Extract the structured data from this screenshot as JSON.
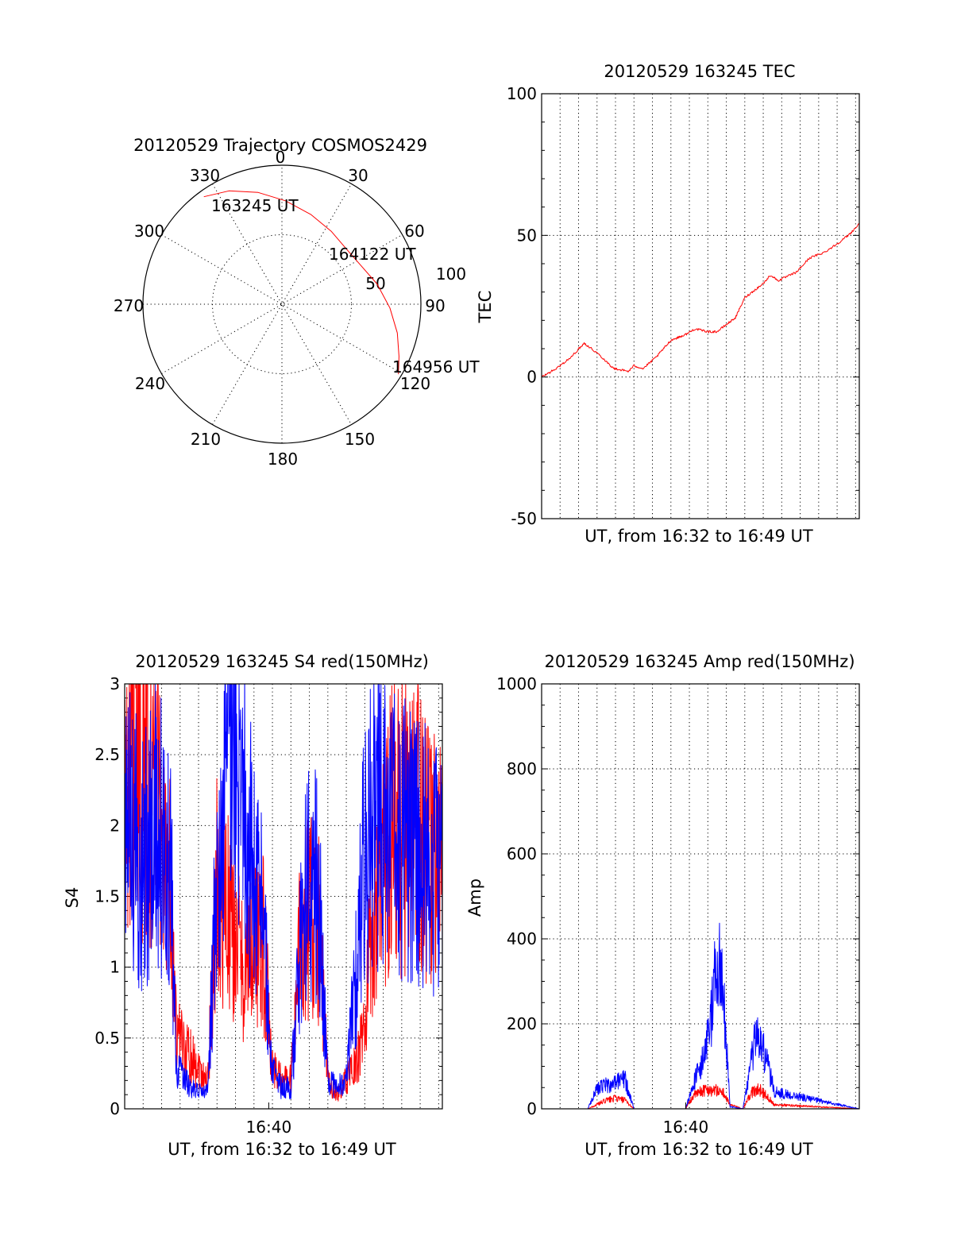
{
  "colors": {
    "red": "#ff0000",
    "blue": "#0000ff",
    "axis": "#000000",
    "background": "#ffffff"
  },
  "chart_data": [
    {
      "type": "polar",
      "title": "20120529 Trajectory COSMOS2429",
      "angle_labels": [
        "0",
        "30",
        "60",
        "90",
        "120",
        "150",
        "180",
        "210",
        "240",
        "270",
        "300",
        "330"
      ],
      "radial_labels": [
        "50",
        "100"
      ],
      "trajectory": {
        "color": "red",
        "points": [
          {
            "azimuth": 324,
            "elevation": 4
          },
          {
            "azimuth": 335,
            "elevation": 9
          },
          {
            "azimuth": 348,
            "elevation": 16
          },
          {
            "azimuth": 2,
            "elevation": 23
          },
          {
            "azimuth": 18,
            "elevation": 29
          },
          {
            "azimuth": 34,
            "elevation": 33
          },
          {
            "azimuth": 50,
            "elevation": 35
          },
          {
            "azimuth": 64,
            "elevation": 33
          },
          {
            "azimuth": 78,
            "elevation": 27
          },
          {
            "azimuth": 92,
            "elevation": 20
          },
          {
            "azimuth": 104,
            "elevation": 13
          },
          {
            "azimuth": 114,
            "elevation": 7
          },
          {
            "azimuth": 121,
            "elevation": 2
          }
        ]
      },
      "annotations": [
        "163245 UT",
        "164122 UT",
        "164956 UT"
      ]
    },
    {
      "type": "line",
      "title": "20120529 163245 TEC",
      "xlabel": "UT, from 16:32 to 16:49 UT",
      "ylabel": "TEC",
      "xlim": [
        0,
        17.2
      ],
      "ylim": [
        -50,
        100
      ],
      "yticks": [
        "-50",
        "0",
        "50",
        "100"
      ],
      "grid": true,
      "series": [
        {
          "color": "red",
          "x": [
            0.0,
            0.8,
            1.6,
            2.3,
            3.1,
            3.9,
            4.7,
            5.0,
            5.5,
            6.2,
            7.0,
            7.8,
            8.3,
            9.0,
            9.5,
            10.5,
            11.0,
            12.0,
            12.4,
            12.8,
            13.8,
            14.5,
            15.3,
            16.0,
            16.6,
            17.2
          ],
          "y": [
            0,
            3,
            7,
            12,
            8,
            3,
            2,
            4,
            3,
            7,
            13,
            15,
            17,
            16,
            16,
            21,
            28,
            33,
            36,
            34,
            37,
            42,
            44,
            47,
            50,
            54
          ]
        }
      ]
    },
    {
      "type": "line",
      "title": "20120529 163245 S4 red(150MHz)",
      "xlabel": "UT, from 16:32 to 16:49 UT",
      "ylabel": "S4",
      "xlim": [
        0,
        17.2
      ],
      "ylim": [
        0,
        3
      ],
      "xticks": [
        {
          "value": 7.8,
          "label": "16:40"
        }
      ],
      "yticks": [
        "0",
        "0.5",
        "1",
        "1.5",
        "2",
        "2.5",
        "3"
      ],
      "grid": true,
      "series": [
        {
          "color": "red",
          "x": [
            0.0,
            0.5,
            1.0,
            1.5,
            2.0,
            2.5,
            2.8,
            3.5,
            4.0,
            4.5,
            5.0,
            5.5,
            6.0,
            6.5,
            7.0,
            7.5,
            8.0,
            8.5,
            9.0,
            9.5,
            10.0,
            10.5,
            11.0,
            11.5,
            12.0,
            12.5,
            13.0,
            13.5,
            14.0,
            14.5,
            15.0,
            15.5,
            16.0,
            16.5,
            17.2
          ],
          "y": [
            2.2,
            2.3,
            2.5,
            2.3,
            2.0,
            1.6,
            0.5,
            0.4,
            0.3,
            0.2,
            1.6,
            1.4,
            1.2,
            1.0,
            1.1,
            1.2,
            0.3,
            0.2,
            0.2,
            1.2,
            1.4,
            1.3,
            0.2,
            0.1,
            0.2,
            0.3,
            0.6,
            1.4,
            1.8,
            2.0,
            2.0,
            1.9,
            2.0,
            1.8,
            1.7
          ]
        },
        {
          "color": "blue",
          "x": [
            0.0,
            0.5,
            1.0,
            1.5,
            2.0,
            2.5,
            2.8,
            3.5,
            4.0,
            4.5,
            5.0,
            5.5,
            6.0,
            6.5,
            7.0,
            7.5,
            8.0,
            8.5,
            9.0,
            9.5,
            10.0,
            10.5,
            11.0,
            11.5,
            12.0,
            12.5,
            13.0,
            13.5,
            14.0,
            14.5,
            15.0,
            15.5,
            16.0,
            16.5,
            17.2
          ],
          "y": [
            2.2,
            1.9,
            1.8,
            2.0,
            1.9,
            1.6,
            0.3,
            0.15,
            0.12,
            0.12,
            1.7,
            2.4,
            2.8,
            2.2,
            1.6,
            1.3,
            0.25,
            0.15,
            0.15,
            1.1,
            1.7,
            1.5,
            0.2,
            0.15,
            0.2,
            0.9,
            1.9,
            2.0,
            2.0,
            1.9,
            2.0,
            1.8,
            1.9,
            1.7,
            1.8
          ]
        }
      ]
    },
    {
      "type": "line",
      "title": "20120529 163245 Amp red(150MHz)",
      "xlabel": "UT, from 16:32 to 16:49 UT",
      "ylabel": "Amp",
      "xlim": [
        0,
        17.2
      ],
      "ylim": [
        0,
        1000
      ],
      "xticks": [
        {
          "value": 7.8,
          "label": "16:40"
        }
      ],
      "yticks": [
        "0",
        "200",
        "400",
        "600",
        "800",
        "1000"
      ],
      "grid": true,
      "series": [
        {
          "color": "red",
          "x": [
            0.0,
            2.5,
            3.0,
            3.5,
            4.0,
            4.5,
            5.0,
            7.8,
            8.2,
            8.8,
            9.2,
            9.8,
            10.2,
            10.9,
            11.4,
            11.8,
            12.2,
            12.6,
            17.2
          ],
          "y": [
            0,
            0,
            10,
            20,
            25,
            20,
            0,
            0,
            30,
            45,
            45,
            40,
            10,
            0,
            40,
            45,
            30,
            10,
            0
          ]
        },
        {
          "color": "blue",
          "x": [
            0.0,
            2.5,
            3.0,
            3.5,
            4.0,
            4.5,
            5.0,
            7.8,
            8.2,
            8.8,
            9.2,
            9.5,
            9.8,
            10.2,
            10.9,
            11.4,
            11.7,
            11.9,
            12.2,
            12.6,
            17.2
          ],
          "y": [
            0,
            0,
            50,
            55,
            60,
            70,
            0,
            0,
            60,
            120,
            220,
            370,
            300,
            5,
            0,
            120,
            200,
            150,
            110,
            40,
            0
          ]
        }
      ]
    }
  ]
}
